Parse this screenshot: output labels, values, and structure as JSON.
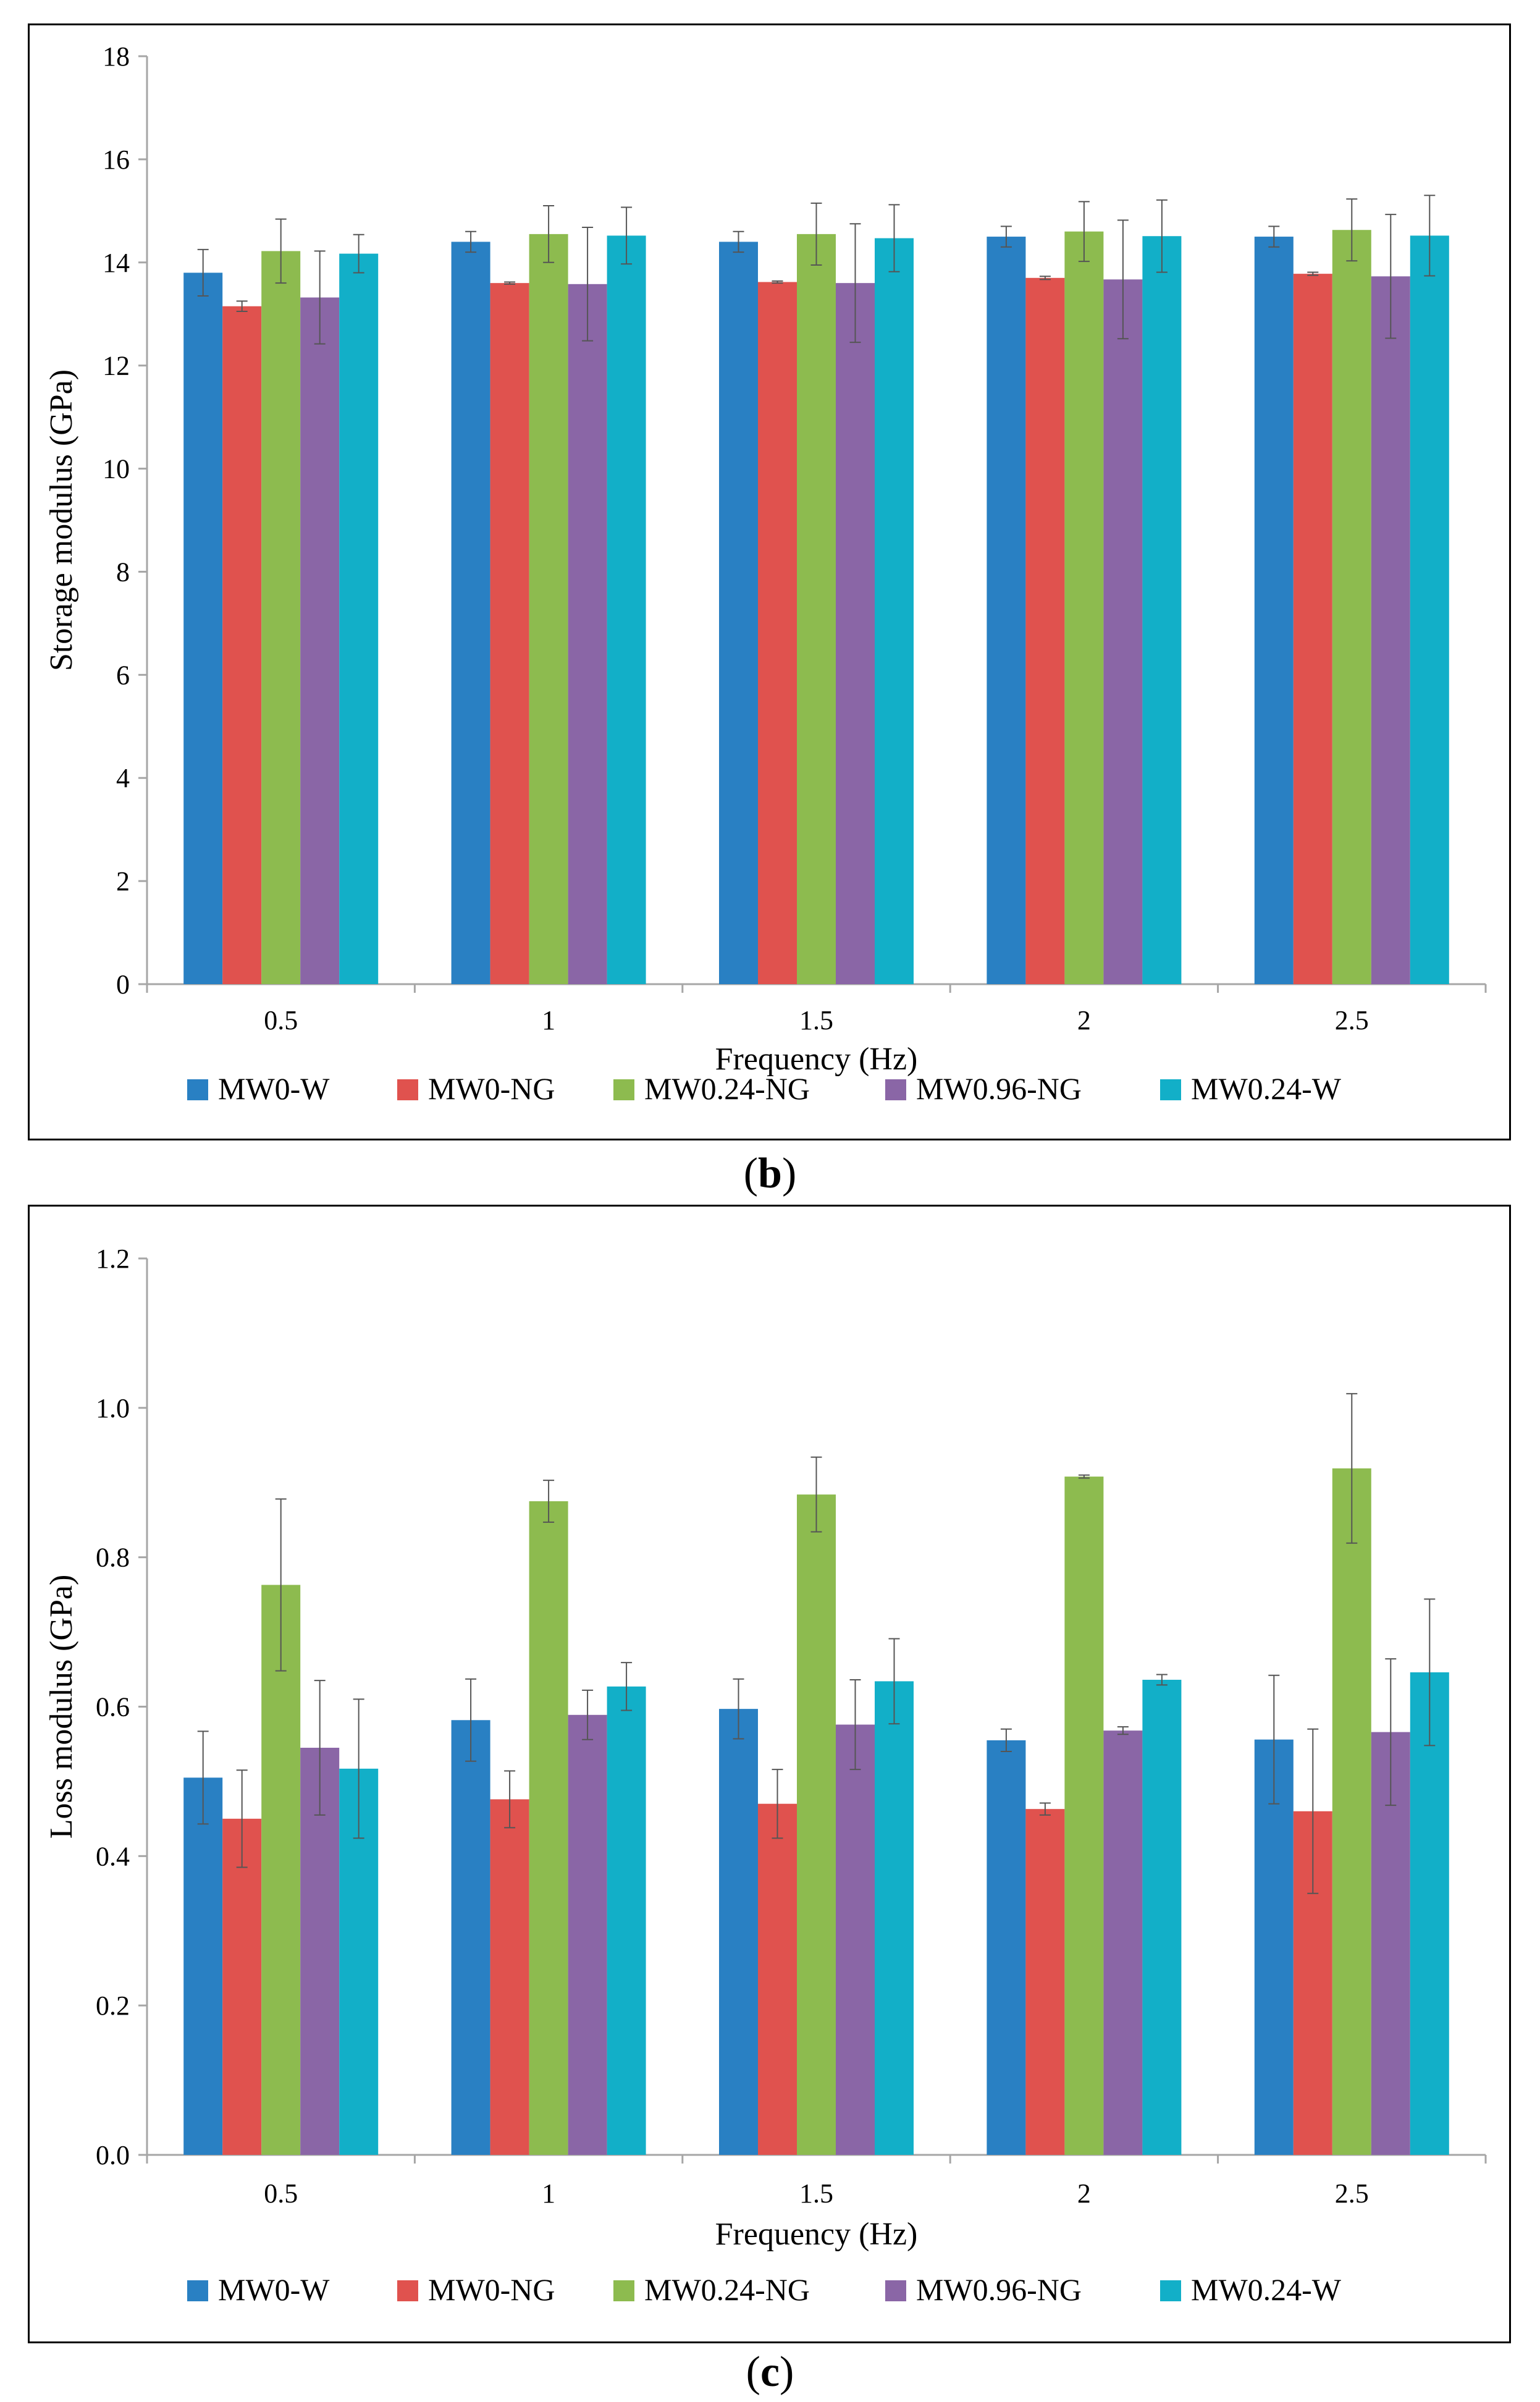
{
  "colors": {
    "MW0-W": "#2980c3",
    "MW0-NG": "#e0524e",
    "MW0.24-NG": "#8dbb4f",
    "MW0.96-NG": "#8a66a6",
    "MW0.24-W": "#12afc8",
    "axis": "#a6a6a6",
    "error": "#555555"
  },
  "captions": {
    "b": "b",
    "c": "c"
  },
  "chart_data": [
    {
      "id": "b",
      "type": "bar",
      "title": "",
      "xlabel": "Frequency (Hz)",
      "ylabel": "Storage modulus (GPa)",
      "ylim": [
        0,
        18
      ],
      "yticks": [
        "0",
        "2",
        "4",
        "6",
        "8",
        "10",
        "12",
        "14",
        "16",
        "18"
      ],
      "ytick_values": [
        0,
        2,
        4,
        6,
        8,
        10,
        12,
        14,
        16,
        18
      ],
      "categories": [
        "0.5",
        "1",
        "1.5",
        "2",
        "2.5"
      ],
      "legend_position": "bottom",
      "series": [
        {
          "name": "MW0-W",
          "values": [
            13.8,
            14.4,
            14.4,
            14.5,
            14.5
          ],
          "errors": [
            0.45,
            0.2,
            0.2,
            0.2,
            0.2
          ]
        },
        {
          "name": "MW0-NG",
          "values": [
            13.15,
            13.6,
            13.62,
            13.7,
            13.78
          ],
          "errors": [
            0.1,
            0.02,
            0.02,
            0.03,
            0.03
          ]
        },
        {
          "name": "MW0.24-NG",
          "values": [
            14.22,
            14.55,
            14.55,
            14.6,
            14.63
          ],
          "errors": [
            0.62,
            0.55,
            0.6,
            0.58,
            0.6
          ]
        },
        {
          "name": "MW0.96-NG",
          "values": [
            13.32,
            13.58,
            13.6,
            13.67,
            13.73
          ],
          "errors": [
            0.9,
            1.1,
            1.15,
            1.15,
            1.2
          ]
        },
        {
          "name": "MW0.24-W",
          "values": [
            14.17,
            14.52,
            14.47,
            14.51,
            14.52
          ],
          "errors": [
            0.37,
            0.55,
            0.65,
            0.7,
            0.78
          ]
        }
      ]
    },
    {
      "id": "c",
      "type": "bar",
      "title": "",
      "xlabel": "Frequency (Hz)",
      "ylabel": "Loss modulus (GPa)",
      "ylim": [
        0,
        1.2
      ],
      "yticks": [
        "0.0",
        "0.2",
        "0.4",
        "0.6",
        "0.8",
        "1.0",
        "1.2"
      ],
      "ytick_values": [
        0,
        0.2,
        0.4,
        0.6,
        0.8,
        1.0,
        1.2
      ],
      "categories": [
        "0.5",
        "1",
        "1.5",
        "2",
        "2.5"
      ],
      "legend_position": "bottom",
      "series": [
        {
          "name": "MW0-W",
          "values": [
            0.505,
            0.582,
            0.597,
            0.555,
            0.556
          ],
          "errors": [
            0.062,
            0.055,
            0.04,
            0.015,
            0.086
          ]
        },
        {
          "name": "MW0-NG",
          "values": [
            0.45,
            0.476,
            0.47,
            0.463,
            0.46
          ],
          "errors": [
            0.065,
            0.038,
            0.046,
            0.008,
            0.11
          ]
        },
        {
          "name": "MW0.24-NG",
          "values": [
            0.763,
            0.875,
            0.884,
            0.908,
            0.919
          ],
          "errors": [
            0.115,
            0.028,
            0.05,
            0.002,
            0.1
          ]
        },
        {
          "name": "MW0.96-NG",
          "values": [
            0.545,
            0.589,
            0.576,
            0.568,
            0.566
          ],
          "errors": [
            0.09,
            0.033,
            0.06,
            0.005,
            0.098
          ]
        },
        {
          "name": "MW0.24-W",
          "values": [
            0.517,
            0.627,
            0.634,
            0.636,
            0.646
          ],
          "errors": [
            0.093,
            0.032,
            0.057,
            0.007,
            0.098
          ]
        }
      ]
    }
  ]
}
